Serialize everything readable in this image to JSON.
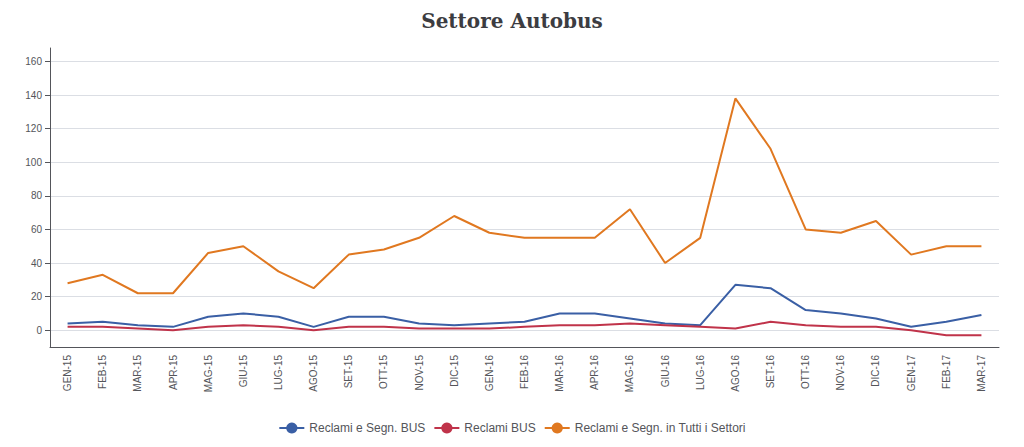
{
  "chart_data": {
    "type": "line",
    "title": "Settore Autobus",
    "categories": [
      "GEN-15",
      "FEB-15",
      "MAR-15",
      "APR-15",
      "MAG-15",
      "GIU-15",
      "LUG-15",
      "AGO-15",
      "SET-15",
      "OTT-15",
      "NOV-15",
      "DIC-15",
      "GEN-16",
      "FEB-16",
      "MAR-16",
      "APR-16",
      "MAG-16",
      "GIU-16",
      "LUG-16",
      "AGO-16",
      "SET-16",
      "OTT-16",
      "NOV-16",
      "DIC-16",
      "GEN-17",
      "FEB-17",
      "MAR-17"
    ],
    "series": [
      {
        "name": "Reclami e Segn. BUS",
        "color": "#3a5fa5",
        "values": [
          4,
          5,
          3,
          2,
          8,
          10,
          8,
          2,
          8,
          8,
          4,
          3,
          4,
          5,
          10,
          10,
          7,
          4,
          3,
          27,
          25,
          12,
          10,
          7,
          2,
          5,
          9
        ]
      },
      {
        "name": "Reclami BUS",
        "color": "#c0334a",
        "values": [
          2,
          2,
          1,
          0,
          2,
          3,
          2,
          0,
          2,
          2,
          1,
          1,
          1,
          2,
          3,
          3,
          4,
          3,
          2,
          1,
          5,
          3,
          2,
          2,
          0,
          -3,
          -3
        ]
      },
      {
        "name": "Reclami e Segn. in Tutti i Settori",
        "color": "#e07820",
        "values": [
          28,
          33,
          22,
          22,
          46,
          50,
          35,
          25,
          45,
          48,
          55,
          68,
          58,
          55,
          55,
          55,
          72,
          40,
          55,
          138,
          108,
          60,
          58,
          65,
          45,
          50,
          50
        ]
      }
    ],
    "ylim": [
      -10,
      168
    ],
    "yticks": [
      0,
      20,
      40,
      60,
      80,
      100,
      120,
      140,
      160
    ],
    "grid": true,
    "legend": "bottom"
  }
}
